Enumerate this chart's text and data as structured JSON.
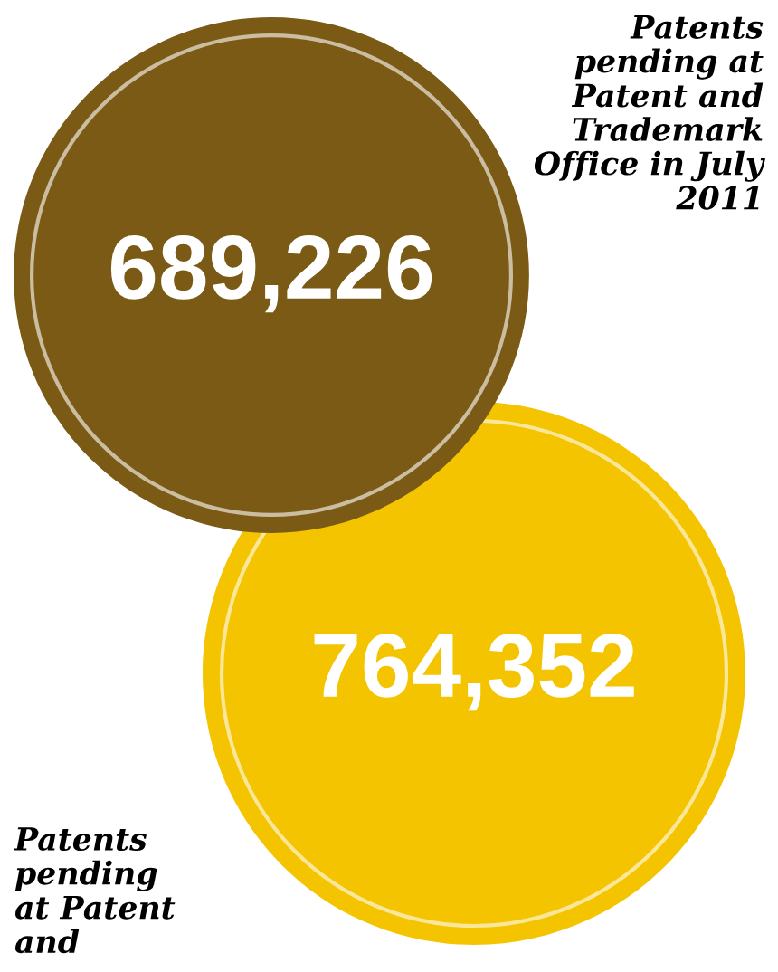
{
  "chart_data": {
    "type": "other",
    "categories": [
      "Patents pending at Patent and Trademark Office in July 2011",
      "Patents pending at Patent and"
    ],
    "values": [
      689226,
      764352
    ],
    "value_labels": [
      "689,226",
      "764,352"
    ],
    "colors": [
      "#7a5a14",
      "#f5c400"
    ]
  }
}
